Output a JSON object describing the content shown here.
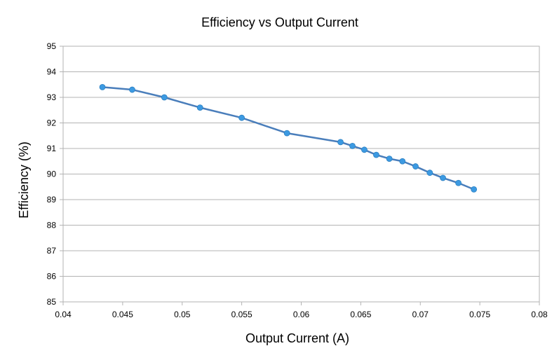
{
  "chart_data": {
    "type": "line",
    "title": "Efficiency vs Output Current",
    "xlabel": "Output Current (A)",
    "ylabel": "Efficiency  (%)",
    "xlim": [
      0.04,
      0.08
    ],
    "ylim": [
      85,
      95
    ],
    "xticks": [
      "0.04",
      "0.045",
      "0.05",
      "0.055",
      "0.06",
      "0.065",
      "0.07",
      "0.075",
      "0.08"
    ],
    "yticks": [
      "85",
      "86",
      "87",
      "88",
      "89",
      "90",
      "91",
      "92",
      "93",
      "94",
      "95"
    ],
    "grid": true,
    "legend": "none",
    "series_color": "#4a7ebb",
    "marker_color": "#3c9ae2",
    "x": [
      0.0433,
      0.0458,
      0.0485,
      0.0515,
      0.055,
      0.0588,
      0.0633,
      0.0643,
      0.0653,
      0.0663,
      0.0674,
      0.0685,
      0.0696,
      0.0708,
      0.0719,
      0.0732,
      0.0745
    ],
    "y": [
      93.4,
      93.3,
      93.0,
      92.6,
      92.2,
      91.6,
      91.25,
      91.1,
      90.95,
      90.75,
      90.6,
      90.5,
      90.3,
      90.05,
      89.85,
      89.65,
      89.4
    ]
  }
}
